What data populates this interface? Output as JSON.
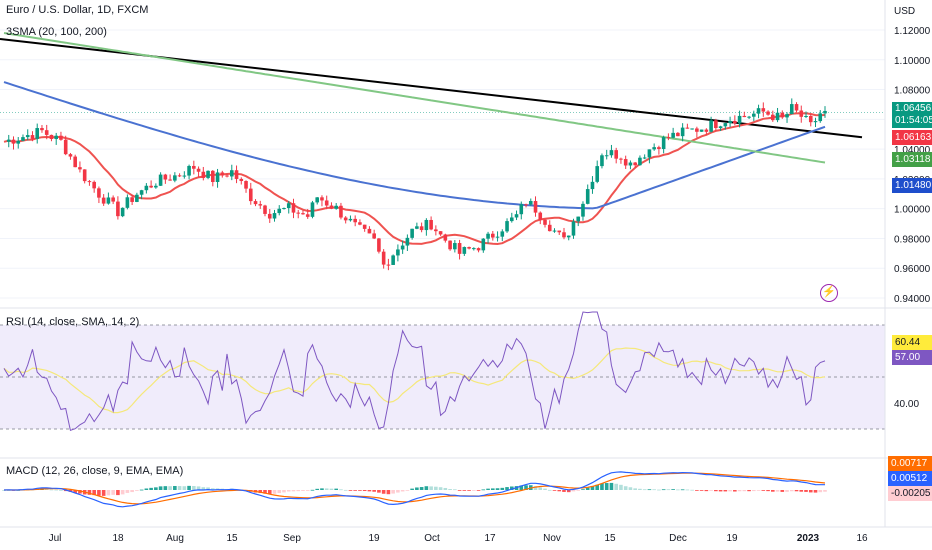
{
  "header": {
    "title": "Euro / U.S. Dollar, 1D, FXCM",
    "indicator": "3SMA (20, 100, 200)",
    "currency": "USD"
  },
  "price_axis": {
    "ticks": [
      "1.12000",
      "1.10000",
      "1.08000",
      "1.06000",
      "1.04000",
      "1.02000",
      "1.00000",
      "0.98000",
      "0.96000",
      "0.94000"
    ],
    "tags": [
      {
        "label": "1.06456",
        "sub": "01:54:05",
        "color": "#089981",
        "value": 1.06456
      },
      {
        "label": "1.06163",
        "color": "#f23645",
        "value": 1.06163
      },
      {
        "label": "1.03118",
        "color": "#43a047",
        "value": 1.03118
      },
      {
        "label": "1.01480",
        "color": "#1e4ecc",
        "value": 1.0148
      }
    ]
  },
  "rsi": {
    "title": "RSI (14, close, SMA, 14, 2)",
    "tick": "40.00",
    "tags": [
      {
        "label": "60.44",
        "color": "#ffeb3b",
        "text": "#131722"
      },
      {
        "label": "57.00",
        "color": "#7e57c2",
        "text": "#ffffff"
      }
    ]
  },
  "macd": {
    "title": "MACD (12, 26, close, 9, EMA, EMA)",
    "tags": [
      {
        "label": "0.00717",
        "color": "#ff6d00",
        "text": "#ffffff"
      },
      {
        "label": "0.00512",
        "color": "#2962ff",
        "text": "#ffffff"
      },
      {
        "label": "-0.00205",
        "color": "#ffcdd2",
        "text": "#131722"
      }
    ]
  },
  "time_axis": {
    "labels": [
      "Jul",
      "18",
      "Aug",
      "15",
      "Sep",
      "19",
      "Oct",
      "17",
      "Nov",
      "15",
      "Dec",
      "19",
      "2023",
      "16"
    ]
  },
  "colors": {
    "up": "#089981",
    "down": "#f23645",
    "sma20": "#ef5350",
    "sma100": "#4a72d1",
    "sma200": "#81c784",
    "trendline": "#000000",
    "rsi_line": "#7e57c2",
    "rsi_ma": "#f5e87a",
    "rsi_band": "#f0ecfb"
  },
  "icons": {
    "alert": "lightning-icon"
  }
}
